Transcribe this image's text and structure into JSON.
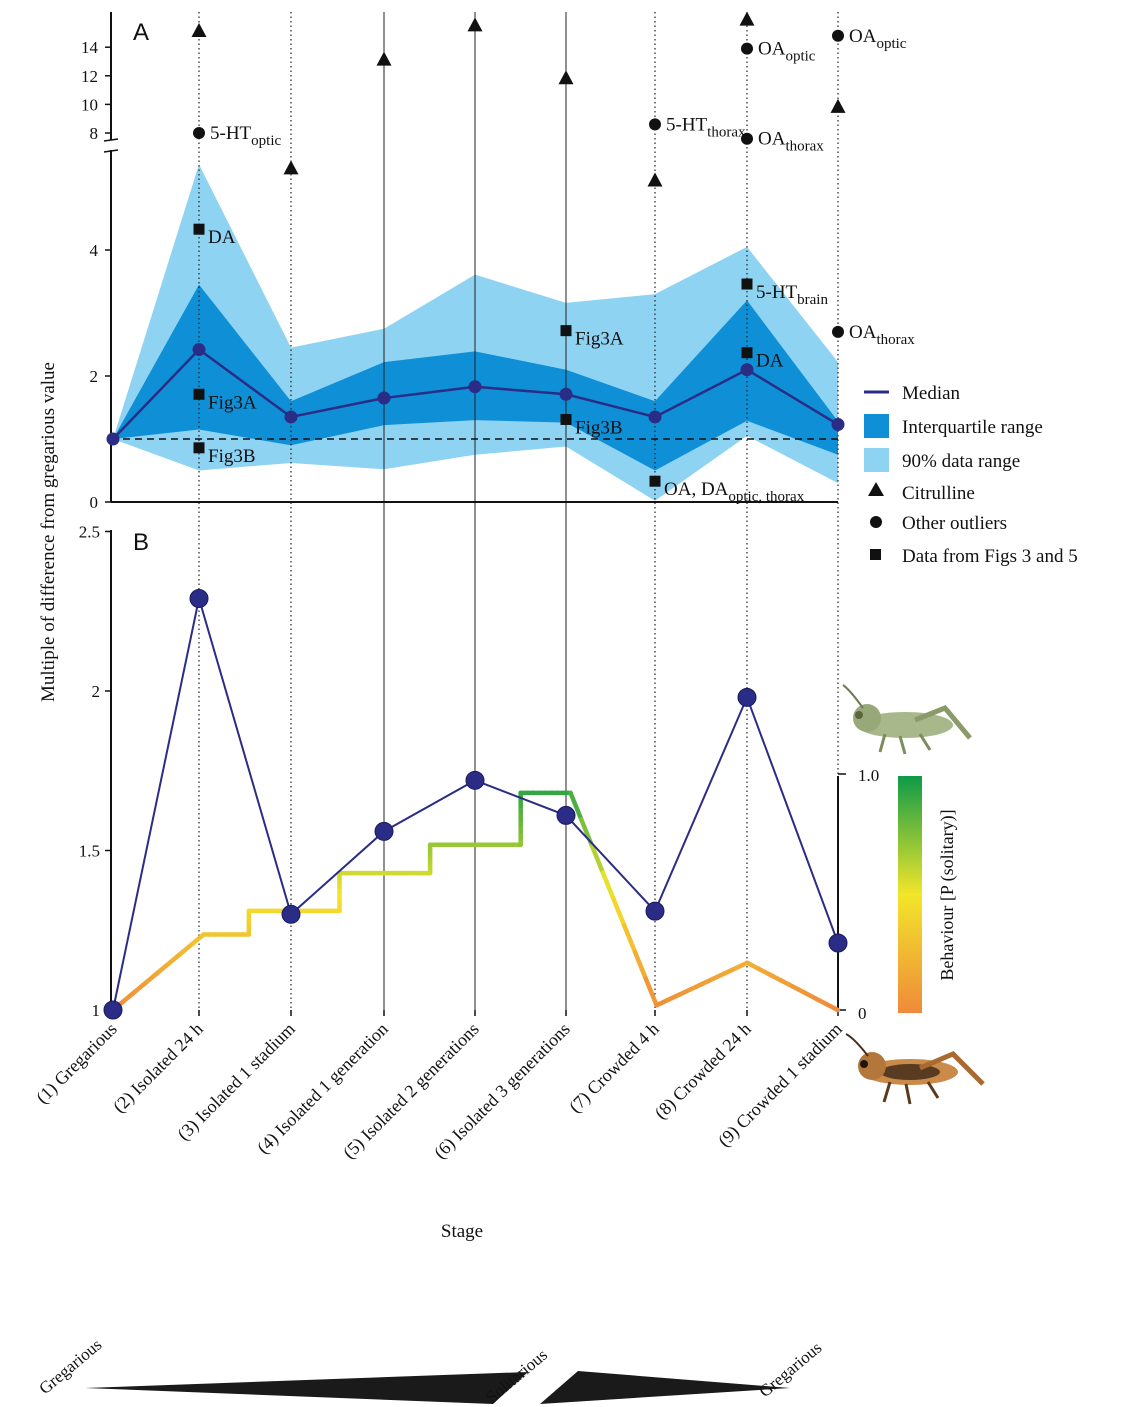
{
  "colors": {
    "median": "#2b2c86",
    "iqr": "#0e8fd6",
    "range90": "#8fd3f3",
    "axis": "#111111",
    "behaviour_low": "#f08a3a",
    "behaviour_mid": "#f2e62a",
    "behaviour_high": "#0e9a48",
    "arrow": "#1a1a1a"
  },
  "y_axis_label": "Multiple of difference from gregarious value",
  "x_axis_label": "Stage",
  "stages": [
    "(1) Gregarious",
    "(2) Isolated 24 h",
    "(3) Isolated 1 stadium",
    "(4) Isolated 1 generation",
    "(5) Isolated 2 generations",
    "(6) Isolated 3 generations",
    "(7) Crowded 4 h",
    "(8) Crowded 24 h",
    "(9) Crowded 1 stadium"
  ],
  "stage_line_styles": [
    "none",
    "dotted",
    "dotted",
    "solid",
    "solid",
    "solid",
    "dotted",
    "dotted",
    "dotted"
  ],
  "chart_data": [
    {
      "panel": "A",
      "type": "area",
      "ylim": [
        0,
        5.9
      ],
      "yticks_lower": [
        0,
        2,
        4
      ],
      "yticks_upper": [
        8,
        10,
        12,
        14
      ],
      "median": [
        1,
        2.42,
        1.35,
        1.65,
        1.83,
        1.71,
        1.35,
        2.1,
        1.23
      ],
      "iqr_low": [
        1,
        1.15,
        0.9,
        1.22,
        1.3,
        1.26,
        0.5,
        1.29,
        0.75
      ],
      "iqr_high": [
        1,
        3.45,
        1.6,
        2.22,
        2.39,
        2.1,
        1.6,
        3.2,
        1.28
      ],
      "range90_low": [
        1,
        0.5,
        0.62,
        0.52,
        0.75,
        0.88,
        0.02,
        1.05,
        0.3
      ],
      "range90_high": [
        1,
        5.36,
        2.45,
        2.75,
        3.61,
        3.16,
        3.3,
        4.05,
        2.22
      ],
      "reference_line": 1,
      "citrulline": [
        {
          "stage": 2,
          "display": "15.2"
        },
        {
          "stage": 3,
          "display": "5.6"
        },
        {
          "stage": 4,
          "display": "13.2"
        },
        {
          "stage": 5,
          "display": "15.6"
        },
        {
          "stage": 6,
          "display": "11.9"
        },
        {
          "stage": 7,
          "display": "4.75"
        },
        {
          "stage": 8,
          "display": "16.0"
        },
        {
          "stage": 9,
          "display": "9.9"
        }
      ],
      "other_outliers": [
        {
          "stage": 2,
          "display": "8.0",
          "label": "5-HT",
          "sub": "optic"
        },
        {
          "stage": 7,
          "display": "8.6",
          "label": "5-HT",
          "sub": "thorax"
        },
        {
          "stage": 8,
          "display": "13.9",
          "label": "OA",
          "sub": "optic"
        },
        {
          "stage": 8,
          "display": "7.6",
          "label": "OA",
          "sub": "thorax"
        },
        {
          "stage": 9,
          "display": "14.8",
          "label": "OA",
          "sub": "optic"
        },
        {
          "stage": 9,
          "value": 2.7,
          "label": "OA",
          "sub": "thorax"
        }
      ],
      "fig_data": [
        {
          "stage": 2,
          "value": 4.33,
          "label": "DA",
          "sub": ""
        },
        {
          "stage": 2,
          "value": 1.71,
          "label": "Fig3A",
          "sub": ""
        },
        {
          "stage": 2,
          "value": 0.86,
          "label": "Fig3B",
          "sub": ""
        },
        {
          "stage": 6,
          "value": 2.72,
          "label": "Fig3A",
          "sub": ""
        },
        {
          "stage": 6,
          "value": 1.31,
          "label": "Fig3B",
          "sub": ""
        },
        {
          "stage": 7,
          "value": 0.33,
          "label": "OA, DA",
          "sub": "optic, thorax"
        },
        {
          "stage": 8,
          "value": 3.46,
          "label": "5-HT",
          "sub": "brain"
        },
        {
          "stage": 8,
          "value": 2.37,
          "label": "DA",
          "sub": ""
        }
      ]
    },
    {
      "panel": "B",
      "type": "line",
      "ylim": [
        1,
        2.5
      ],
      "yticks": [
        "1",
        "1.5",
        "2",
        "2.5"
      ],
      "values": [
        1.0,
        2.29,
        1.3,
        1.56,
        1.72,
        1.61,
        1.31,
        1.98,
        1.21
      ],
      "behaviour": {
        "label": "Behaviour  [P (solitary)]",
        "ylim": [
          0,
          1
        ],
        "ticks": [
          "0",
          "1.0"
        ],
        "points": [
          [
            1,
            0.0
          ],
          [
            2,
            0.32
          ],
          [
            2.5,
            0.32
          ],
          [
            2.5,
            0.42
          ],
          [
            3.5,
            0.42
          ],
          [
            3.5,
            0.58
          ],
          [
            4.5,
            0.58
          ],
          [
            4.5,
            0.7
          ],
          [
            5.5,
            0.7
          ],
          [
            5.5,
            0.92
          ],
          [
            6.05,
            0.92
          ],
          [
            7,
            0.02
          ],
          [
            8,
            0.2
          ],
          [
            9,
            0.0
          ]
        ]
      }
    }
  ],
  "legend": {
    "median": "Median",
    "iqr": "Interquartile range",
    "range90": "90% data range",
    "citrulline": "Citrulline",
    "other": "Other outliers",
    "figdata": "Data from Figs 3 and 5"
  },
  "panel_labels": {
    "a": "A",
    "b": "B"
  },
  "bottom_arrows": {
    "left": "Gregarious",
    "middle": "Solitarious",
    "right": "Gregarious"
  }
}
